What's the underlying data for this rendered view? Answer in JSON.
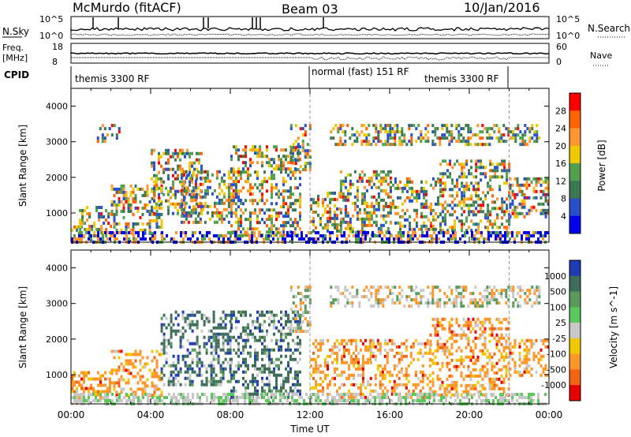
{
  "header": {
    "title": "McMurdo (fitACF)",
    "beam": "Beam 03",
    "date": "10/Jan/2016"
  },
  "top_panels": {
    "nsky_label": "N.Sky",
    "nsearch_label": "N.Search",
    "nsky_ticks": [
      "10^5",
      "10^0"
    ],
    "nsearch_ticks": [
      "10^5",
      "10^0"
    ],
    "freq_label": "Freq.",
    "freq_unit": "[MHz]",
    "freq_ticks": [
      "18",
      "8"
    ],
    "nave_label": "Nave",
    "nave_ticks": [
      "60",
      "0"
    ],
    "cpid_label": "CPID",
    "cpid_segments": [
      {
        "label": "themis 3300 RF",
        "start_h": 0,
        "end_h": 12
      },
      {
        "label": "normal (fast) 151 RF",
        "start_h": 12,
        "end_h": 22
      },
      {
        "label": "themis 3300 RF",
        "start_h": 22,
        "end_h": 24
      }
    ],
    "cpid_extra_label": "themis 3300 RF"
  },
  "chart_data": [
    {
      "type": "heatmap",
      "title": "",
      "xlabel": "",
      "ylabel": "Slant Range [km]",
      "xlim": [
        0,
        24
      ],
      "ylim": [
        180,
        4500
      ],
      "y_ticks": [
        1000,
        2000,
        3000,
        4000
      ],
      "colorbar": {
        "label": "Power [dB]",
        "ticks": [
          "4",
          "8",
          "12",
          "16",
          "20",
          "24",
          "28"
        ],
        "colors": [
          "#0000ee",
          "#2850c8",
          "#3c7850",
          "#50a050",
          "#f0c800",
          "#ff9632",
          "#ff6400",
          "#ff0000"
        ]
      },
      "scatter_regions": [
        {
          "t_start": 0.0,
          "t_end": 0.6,
          "r_start": 250,
          "r_end": 650
        },
        {
          "t_start": 0.4,
          "t_end": 2.0,
          "r_start": 350,
          "r_end": 1200
        },
        {
          "t_start": 1.3,
          "t_end": 2.5,
          "r_start": 3000,
          "r_end": 3500
        },
        {
          "t_start": 2.0,
          "t_end": 4.5,
          "r_start": 450,
          "r_end": 1800
        },
        {
          "t_start": 4.0,
          "t_end": 6.5,
          "r_start": 1000,
          "r_end": 2800
        },
        {
          "t_start": 5.5,
          "t_end": 8.5,
          "r_start": 700,
          "r_end": 2200
        },
        {
          "t_start": 8.0,
          "t_end": 11.5,
          "r_start": 400,
          "r_end": 2900
        },
        {
          "t_start": 11.0,
          "t_end": 12.0,
          "r_start": 2200,
          "r_end": 3500
        },
        {
          "t_start": 12.0,
          "t_end": 13.5,
          "r_start": 500,
          "r_end": 1600
        },
        {
          "t_start": 13.5,
          "t_end": 16.0,
          "r_start": 400,
          "r_end": 2200
        },
        {
          "t_start": 16.0,
          "t_end": 18.5,
          "r_start": 500,
          "r_end": 2000
        },
        {
          "t_start": 18.5,
          "t_end": 22.0,
          "r_start": 500,
          "r_end": 2500
        },
        {
          "t_start": 22.0,
          "t_end": 24.0,
          "r_start": 900,
          "r_end": 2000
        },
        {
          "t_start": 13.0,
          "t_end": 23.5,
          "r_start": 2900,
          "r_end": 3500
        }
      ]
    },
    {
      "type": "heatmap",
      "title": "",
      "xlabel": "Time UT",
      "ylabel": "Slant Range [km]",
      "xlim": [
        0,
        24
      ],
      "ylim": [
        180,
        4500
      ],
      "x_ticks": [
        "00:00",
        "04:00",
        "08:00",
        "12:00",
        "16:00",
        "20:00",
        "00:00"
      ],
      "y_ticks": [
        1000,
        2000,
        3000,
        4000
      ],
      "colorbar": {
        "label": "Velocity [m s^-1]",
        "ticks": [
          "1000",
          "500",
          "100",
          "25",
          "-25",
          "-100",
          "-500",
          "-1000"
        ],
        "colors": [
          "#1e3cb4",
          "#3c6e5a",
          "#5a9a5a",
          "#5ac85a",
          "#c8c8c8",
          "#f0c800",
          "#ff9628",
          "#f06414",
          "#e60000"
        ]
      },
      "scatter_regions": [
        {
          "t_start": 0.0,
          "t_end": 2.0,
          "r_start": 250,
          "r_end": 1100
        },
        {
          "t_start": 2.0,
          "t_end": 4.5,
          "r_start": 400,
          "r_end": 1700
        },
        {
          "t_start": 4.5,
          "t_end": 8.0,
          "r_start": 700,
          "r_end": 2800
        },
        {
          "t_start": 8.0,
          "t_end": 11.5,
          "r_start": 400,
          "r_end": 2800
        },
        {
          "t_start": 11.0,
          "t_end": 12.0,
          "r_start": 2200,
          "r_end": 3500
        },
        {
          "t_start": 12.0,
          "t_end": 15.0,
          "r_start": 400,
          "r_end": 2000
        },
        {
          "t_start": 15.0,
          "t_end": 18.0,
          "r_start": 400,
          "r_end": 2000
        },
        {
          "t_start": 18.0,
          "t_end": 22.0,
          "r_start": 400,
          "r_end": 2600
        },
        {
          "t_start": 22.0,
          "t_end": 24.0,
          "r_start": 1000,
          "r_end": 2000
        },
        {
          "t_start": 13.0,
          "t_end": 23.5,
          "r_start": 2900,
          "r_end": 3500
        }
      ]
    }
  ]
}
